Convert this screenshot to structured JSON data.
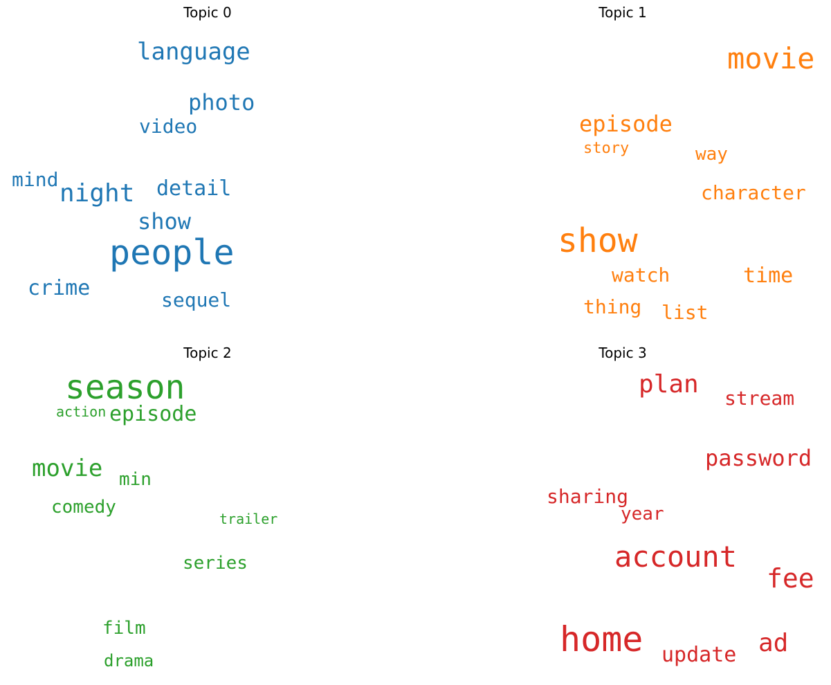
{
  "topics": [
    {
      "title": "Topic 0",
      "color": "#1f77b4",
      "words": [
        "language",
        "photo",
        "video",
        "mind",
        "night",
        "detail",
        "show",
        "people",
        "crime",
        "sequel"
      ]
    },
    {
      "title": "Topic 1",
      "color": "#ff7f0e",
      "words": [
        "movie",
        "episode",
        "story",
        "way",
        "character",
        "show",
        "watch",
        "time",
        "thing",
        "list"
      ]
    },
    {
      "title": "Topic 2",
      "color": "#2ca02c",
      "words": [
        "season",
        "action",
        "episode",
        "movie",
        "min",
        "comedy",
        "trailer",
        "series",
        "film",
        "drama"
      ]
    },
    {
      "title": "Topic 3",
      "color": "#d62728",
      "words": [
        "plan",
        "stream",
        "password",
        "sharing",
        "year",
        "account",
        "fee",
        "home",
        "ad",
        "update"
      ]
    }
  ]
}
